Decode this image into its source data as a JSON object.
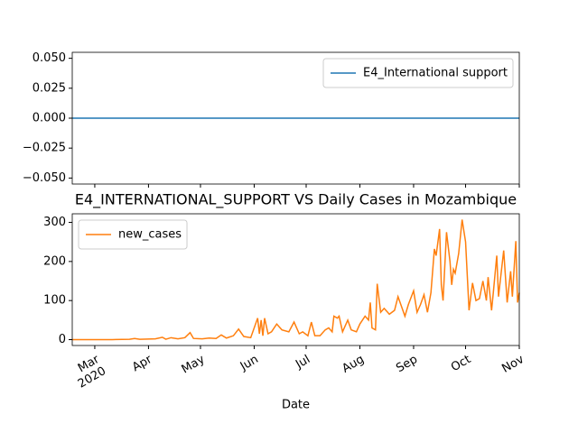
{
  "chart_data": [
    {
      "type": "line",
      "x": [
        -13,
        245
      ],
      "series": [
        {
          "name": "E4_International support",
          "color": "#1f77b4",
          "values": [
            0,
            0
          ]
        }
      ],
      "xlim": [
        -13,
        245
      ],
      "ylim": [
        -0.055,
        0.055
      ],
      "yticks": [
        {
          "value": -0.05,
          "label": "−0.050"
        },
        {
          "value": -0.025,
          "label": "−0.025"
        },
        {
          "value": 0,
          "label": "0.000"
        },
        {
          "value": 0.025,
          "label": "0.025"
        },
        {
          "value": 0.05,
          "label": "0.050"
        }
      ],
      "legend": "upper right"
    },
    {
      "type": "line",
      "title": "E4_INTERNATIONAL_SUPPORT VS Daily Cases in Mozambique",
      "xlabel": "Date",
      "x": [
        -13,
        0,
        10,
        20,
        23,
        26,
        35,
        39,
        41,
        44,
        48,
        52,
        55,
        57,
        62,
        66,
        70,
        73,
        76,
        80,
        83,
        86,
        90,
        94,
        95,
        96,
        97,
        98,
        100,
        102,
        105,
        108,
        112,
        115,
        118,
        120,
        123,
        125,
        127,
        130,
        133,
        135,
        137,
        138,
        140,
        141,
        143,
        146,
        148,
        151,
        153,
        156,
        158,
        159,
        160,
        162,
        163,
        165,
        167,
        169,
        170,
        173,
        175,
        177,
        179,
        181,
        184,
        186,
        188,
        190,
        192,
        194,
        196,
        197,
        199,
        200,
        201,
        203,
        205,
        206,
        207,
        208,
        210,
        212,
        214,
        216,
        218,
        220,
        222,
        224,
        226,
        227,
        229,
        230,
        232,
        233,
        234,
        236,
        238,
        240,
        241,
        243,
        244,
        245
      ],
      "series": [
        {
          "name": "new_cases",
          "color": "#ff7f0e",
          "values": [
            0,
            0,
            0,
            1,
            3,
            1,
            2,
            6,
            1,
            5,
            2,
            5,
            18,
            3,
            2,
            4,
            3,
            12,
            4,
            10,
            27,
            8,
            5,
            55,
            15,
            50,
            10,
            55,
            15,
            20,
            40,
            25,
            20,
            45,
            15,
            20,
            10,
            45,
            10,
            10,
            25,
            30,
            20,
            60,
            55,
            60,
            20,
            50,
            25,
            20,
            40,
            60,
            50,
            95,
            30,
            25,
            143,
            70,
            80,
            70,
            65,
            75,
            110,
            85,
            60,
            90,
            125,
            70,
            90,
            115,
            70,
            120,
            232,
            215,
            283,
            140,
            100,
            275,
            200,
            140,
            180,
            170,
            220,
            307,
            250,
            75,
            145,
            100,
            105,
            150,
            100,
            160,
            75,
            120,
            215,
            110,
            150,
            228,
            95,
            175,
            110,
            252,
            95,
            120
          ]
        }
      ],
      "xlim": [
        -13,
        245
      ],
      "xticks": [
        {
          "value": 0,
          "label": "Mar\n2020"
        },
        {
          "value": 31,
          "label": "Apr"
        },
        {
          "value": 61,
          "label": "May"
        },
        {
          "value": 92,
          "label": "Jun"
        },
        {
          "value": 122,
          "label": "Jul"
        },
        {
          "value": 153,
          "label": "Aug"
        },
        {
          "value": 184,
          "label": "Sep"
        },
        {
          "value": 214,
          "label": "Oct"
        },
        {
          "value": 245,
          "label": "Nov"
        }
      ],
      "ylim": [
        -15,
        322
      ],
      "yticks": [
        0,
        100,
        200,
        300
      ],
      "legend": "upper left"
    }
  ]
}
